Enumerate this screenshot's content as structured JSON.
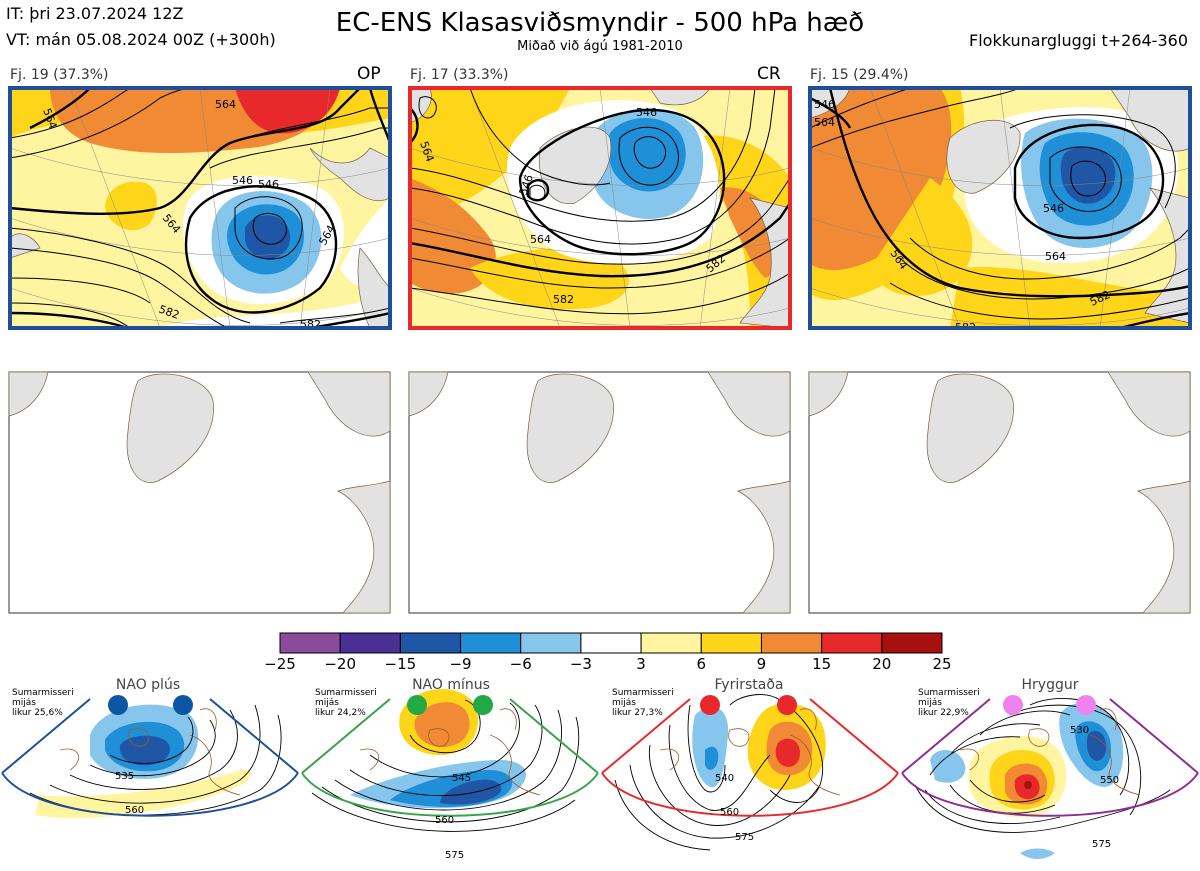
{
  "header": {
    "it": "IT: þri 23.07.2024 12Z",
    "vt": "VT: mán 05.08.2024 00Z  (+300h)",
    "title": "EC-ENS Klasasviðsmyndir - 500 hPa hæð",
    "subtitle": "Miðað við ágú 1981-2010",
    "window": "Flokkunargluggi t+264-360"
  },
  "clusters": [
    {
      "label": "Fj. 19 (37.3%)",
      "tag": "OP",
      "frame_color": "#1f4f9c",
      "contours": [
        "564",
        "546",
        "564",
        "564",
        "582",
        "582",
        "564",
        "546"
      ]
    },
    {
      "label": "Fj. 17 (33.3%)",
      "tag": "CR",
      "frame_color": "#e8282b",
      "contours": [
        "546",
        "546",
        "564",
        "582",
        "582",
        "564"
      ]
    },
    {
      "label": "Fj. 15 (29.4%)",
      "tag": "",
      "frame_color": "#1f4f9c",
      "contours": [
        "546",
        "564",
        "564",
        "546",
        "582",
        "582",
        "564"
      ]
    }
  ],
  "colorbar": {
    "colors": [
      "#8b4a9c",
      "#4a2f94",
      "#1f56a5",
      "#1f8fd8",
      "#86c6ec",
      "#ffffff",
      "#fff5a0",
      "#ffd51a",
      "#f08a35",
      "#e8292b",
      "#a81010"
    ],
    "labels": [
      "−25",
      "−20",
      "−15",
      "−9",
      "−6",
      "−3",
      "3",
      "6",
      "9",
      "15",
      "20",
      "25"
    ]
  },
  "regimes": [
    {
      "name": "NAO plús",
      "note": [
        "Sumarmisseri",
        "mijás",
        "likur 25,6%"
      ],
      "color": "#1f4f9c",
      "dot_color": "#0b57a4",
      "contours": [
        "535",
        "560"
      ]
    },
    {
      "name": "NAO mínus",
      "note": [
        "Sumarmisseri",
        "mijás",
        "likur 24,2%"
      ],
      "color": "#3aa34a",
      "dot_color": "#22a845",
      "contours": [
        "545",
        "560",
        "575"
      ]
    },
    {
      "name": "Fyrirstaða",
      "note": [
        "Sumarmisseri",
        "mijás",
        "likur 27,3%"
      ],
      "color": "#e8282b",
      "dot_color": "#e8282b",
      "contours": [
        "540",
        "560",
        "575"
      ]
    },
    {
      "name": "Hryggur",
      "note": [
        "Sumarmisseri",
        "mijás",
        "likur 22,9%"
      ],
      "color": "#8e2c95",
      "dot_color": "#ee82ee",
      "contours": [
        "530",
        "550",
        "575"
      ]
    }
  ]
}
